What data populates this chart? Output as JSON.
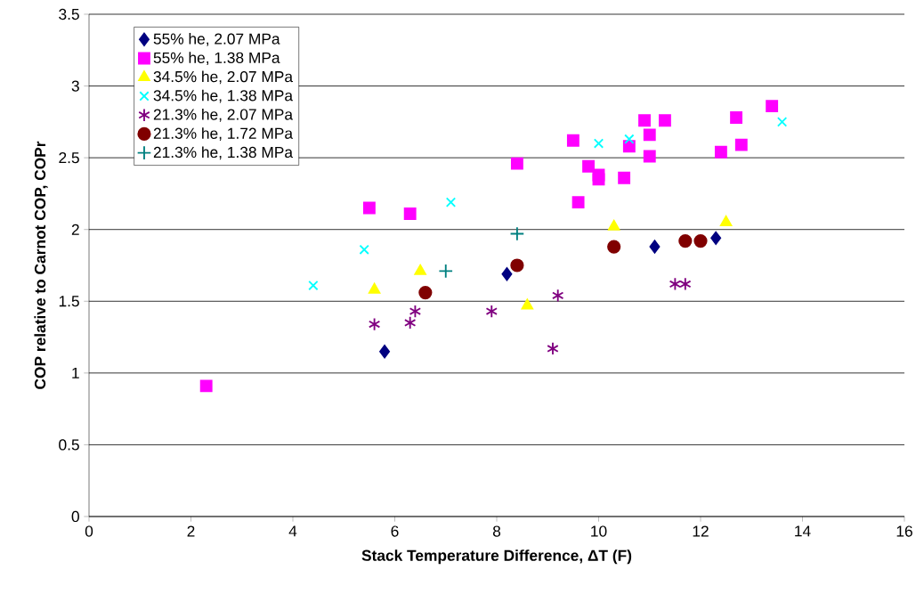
{
  "chart_data": {
    "type": "scatter",
    "xlabel": "Stack Temperature Difference, ΔT (F)",
    "ylabel": "COP relative to Carnot COP, COPr",
    "xlim": [
      0,
      16
    ],
    "xticks": [
      0,
      2,
      4,
      6,
      8,
      10,
      12,
      14,
      16
    ],
    "ylim": [
      0,
      3.5
    ],
    "yticks": [
      0,
      0.5,
      1,
      1.5,
      2,
      2.5,
      3,
      3.5
    ],
    "grid": "y",
    "legend": "top left",
    "series": [
      {
        "name": "55% he, 2.07 MPa",
        "color": "#000080",
        "marker": "diamond",
        "x": [
          5.8,
          8.2,
          11.1,
          12.3
        ],
        "values": [
          1.15,
          1.69,
          1.88,
          1.94
        ]
      },
      {
        "name": "55% he, 1.38 MPa",
        "color": "#ff00ff",
        "marker": "square",
        "x": [
          2.3,
          5.5,
          6.3,
          8.4,
          9.5,
          9.6,
          9.8,
          10.0,
          10.0,
          10.5,
          10.6,
          10.9,
          11.0,
          11.0,
          11.3,
          12.4,
          12.7,
          12.8,
          13.4
        ],
        "values": [
          0.91,
          2.15,
          2.11,
          2.46,
          2.62,
          2.19,
          2.44,
          2.38,
          2.35,
          2.36,
          2.58,
          2.76,
          2.66,
          2.51,
          2.76,
          2.54,
          2.78,
          2.59,
          2.86
        ]
      },
      {
        "name": "34.5% he, 2.07 MPa",
        "color": "#ffff00",
        "marker": "triangle",
        "x": [
          5.6,
          6.5,
          8.6,
          10.3,
          12.5
        ],
        "values": [
          1.58,
          1.71,
          1.47,
          2.02,
          2.05
        ]
      },
      {
        "name": "34.5% he, 1.38 MPa",
        "color": "#00ffff",
        "marker": "cross",
        "x": [
          4.4,
          5.4,
          7.1,
          10.0,
          10.6,
          13.6
        ],
        "values": [
          1.61,
          1.86,
          2.19,
          2.6,
          2.63,
          2.75
        ]
      },
      {
        "name": "21.3% he, 2.07 MPa",
        "color": "#800080",
        "marker": "cross",
        "x": [
          5.6,
          6.3,
          6.4,
          7.9,
          9.1,
          9.2,
          11.5,
          11.7
        ],
        "values": [
          1.34,
          1.35,
          1.43,
          1.43,
          1.17,
          1.54,
          1.62,
          1.62
        ]
      },
      {
        "name": "21.3% he, 1.72 MPa",
        "color": "#800000",
        "marker": "circle",
        "x": [
          6.6,
          8.4,
          10.3,
          11.7,
          12.0
        ],
        "values": [
          1.56,
          1.75,
          1.88,
          1.92,
          1.92
        ]
      },
      {
        "name": "21.3% he, 1.38 MPa",
        "color": "#008080",
        "marker": "plus",
        "x": [
          7.0,
          8.4
        ],
        "values": [
          1.71,
          1.97
        ]
      }
    ]
  }
}
